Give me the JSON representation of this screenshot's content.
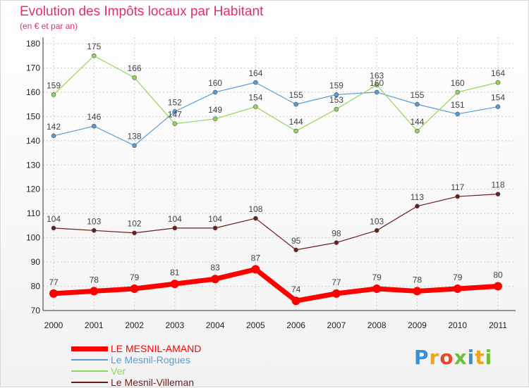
{
  "title": "Evolution des Impôts locaux par Habitant",
  "subtitle": "(en € et par an)",
  "logo": "Proxiti",
  "chart_data": {
    "type": "line",
    "title": "Evolution des Impôts locaux par Habitant",
    "subtitle": "(en € et par an)",
    "x": [
      2000,
      2001,
      2002,
      2003,
      2004,
      2005,
      2006,
      2007,
      2008,
      2009,
      2010,
      2011
    ],
    "ylim": [
      70,
      180
    ],
    "yticks": [
      70,
      80,
      90,
      100,
      110,
      120,
      130,
      140,
      150,
      160,
      170,
      180
    ],
    "grid": true,
    "legend_position": "bottom-left",
    "series": [
      {
        "name": "LE MESNIL-AMAND",
        "color": "#ff0000",
        "values": [
          77,
          78,
          79,
          81,
          83,
          87,
          74,
          77,
          79,
          78,
          79,
          80
        ]
      },
      {
        "name": "Le Mesnil-Rogues",
        "color": "#5b9bd5",
        "values": [
          142,
          146,
          138,
          152,
          160,
          164,
          155,
          159,
          160,
          155,
          151,
          154
        ]
      },
      {
        "name": "Ver",
        "color": "#90d65a",
        "values": [
          159,
          175,
          166,
          147,
          149,
          154,
          144,
          153,
          163,
          144,
          160,
          164
        ]
      },
      {
        "name": "Le Mesnil-Villeman",
        "color": "#6b1e1e",
        "values": [
          104,
          103,
          102,
          104,
          104,
          108,
          95,
          98,
          103,
          113,
          117,
          118
        ]
      }
    ]
  }
}
